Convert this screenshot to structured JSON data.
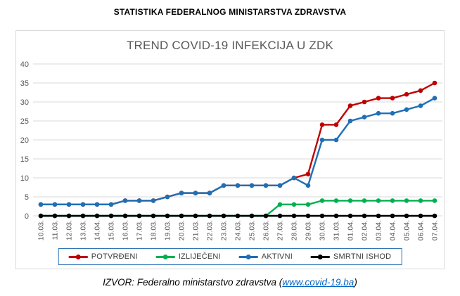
{
  "header": {
    "title": "STATISTIKA FEDERALNOG MINISTARSTVA ZDRAVSTVA"
  },
  "chart_data": {
    "type": "line",
    "title": "TREND COVID-19 INFEKCIJA U ZDK",
    "categories": [
      "10.03.",
      "11.03.",
      "12.03.",
      "13.03.",
      "14.04.",
      "15.03.",
      "16.03.",
      "17.03.",
      "18.03.",
      "19.03.",
      "20.03.",
      "21.03.",
      "22.03.",
      "23.03.",
      "24.03.",
      "25.03.",
      "26.03.",
      "27.03.",
      "28.03.",
      "29.03.",
      "30.03.",
      "31.03.",
      "01.04.",
      "02.04.",
      "03.04.",
      "04.04.",
      "05.04.",
      "06.04.",
      "07.04."
    ],
    "series": [
      {
        "name": "POTVRĐENI",
        "color": "#c00000",
        "values": [
          3,
          3,
          3,
          3,
          3,
          3,
          4,
          4,
          4,
          5,
          6,
          6,
          6,
          8,
          8,
          8,
          8,
          8,
          10,
          11,
          24,
          24,
          29,
          30,
          31,
          31,
          32,
          33,
          35
        ]
      },
      {
        "name": "IZLIJEČENI",
        "color": "#00b050",
        "values": [
          0,
          0,
          0,
          0,
          0,
          0,
          0,
          0,
          0,
          0,
          0,
          0,
          0,
          0,
          0,
          0,
          0,
          3,
          3,
          3,
          4,
          4,
          4,
          4,
          4,
          4,
          4,
          4,
          4
        ]
      },
      {
        "name": "AKTIVNI",
        "color": "#1f6fb5",
        "values": [
          3,
          3,
          3,
          3,
          3,
          3,
          4,
          4,
          4,
          5,
          6,
          6,
          6,
          8,
          8,
          8,
          8,
          8,
          10,
          8,
          20,
          20,
          25,
          26,
          27,
          27,
          28,
          29,
          31
        ]
      },
      {
        "name": "SMRTNI ISHOD",
        "color": "#000000",
        "values": [
          0,
          0,
          0,
          0,
          0,
          0,
          0,
          0,
          0,
          0,
          0,
          0,
          0,
          0,
          0,
          0,
          0,
          0,
          0,
          0,
          0,
          0,
          0,
          0,
          0,
          0,
          0,
          0,
          0
        ]
      }
    ],
    "ylim": [
      0,
      40
    ],
    "ytick_step": 5,
    "grid": "horizontal",
    "legend_position": "bottom",
    "gridline_color": "#d9d9d9",
    "axis_label_color": "#595959",
    "legend_border_color": "#2e75b6"
  },
  "footer": {
    "prefix": "IZVOR: Federalno ministarstvo zdravstva (",
    "link_text": "www.covid-19.ba",
    "suffix": ")"
  }
}
